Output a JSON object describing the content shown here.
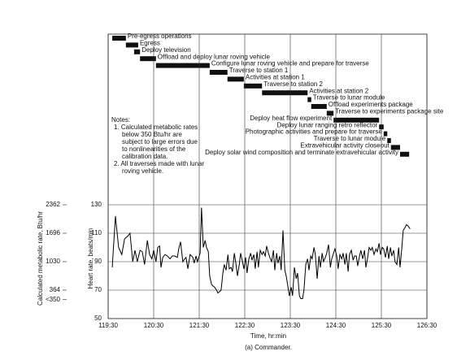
{
  "chart_data": [
    {
      "type": "gantt",
      "xlim": [
        119.5,
        126.5
      ],
      "tasks": [
        {
          "name": "Pre-egress operations",
          "start": 119.59,
          "end": 119.89
        },
        {
          "name": "Egress",
          "start": 119.89,
          "end": 120.16
        },
        {
          "name": "Deploy television",
          "start": 120.07,
          "end": 120.2
        },
        {
          "name": "Offload and deploy lunar roving vehicle",
          "start": 120.2,
          "end": 120.55
        },
        {
          "name": "Configure lunar roving vehicle and prepare for traverse",
          "start": 120.55,
          "end": 121.73
        },
        {
          "name": "Traverse to station 1",
          "start": 121.73,
          "end": 122.12
        },
        {
          "name": "Activities at station 1",
          "start": 122.12,
          "end": 122.48
        },
        {
          "name": "Traverse to station 2",
          "start": 122.48,
          "end": 122.88
        },
        {
          "name": "Activities at station 2",
          "start": 122.88,
          "end": 123.88
        },
        {
          "name": "Traverse to lunar module",
          "start": 123.88,
          "end": 123.96
        },
        {
          "name": "Offload experiments package",
          "start": 123.96,
          "end": 124.3
        },
        {
          "name": "Traverse to experiments package site",
          "start": 124.3,
          "end": 124.45
        },
        {
          "name": "Deploy heat flow experiment",
          "start": 124.45,
          "end": 125.45
        },
        {
          "name": "Deploy lunar ranging retro reflector",
          "start": 125.45,
          "end": 125.55
        },
        {
          "name": "Photographic activities and prepare for traverse",
          "start": 125.55,
          "end": 125.63
        },
        {
          "name": "Traverse to lunar module",
          "start": 125.63,
          "end": 125.71
        },
        {
          "name": "Extravehicular activity closeout",
          "start": 125.71,
          "end": 125.91
        },
        {
          "name": "Deploy solar wind composition and terminate extravehicular activity",
          "start": 125.91,
          "end": 126.11
        }
      ],
      "notes": [
        "Notes:",
        "1. Calculated metabolic rates",
        "below 350 Btu/hr are",
        "subject to large errors due",
        "to nonlinearities of the",
        "calibration data.",
        "2. All traverses made with lunar",
        "roving vehicle."
      ]
    },
    {
      "type": "line",
      "xlabel": "Time, hr:min",
      "ylabel": "Heart rate, beats/min",
      "y2label": "Calculated metabolic rate, Btu/hr",
      "caption": "(a) Commander.",
      "color": "#000000",
      "grid": true,
      "xlim": [
        119.5,
        126.5
      ],
      "xticks": [
        {
          "value": 119.5,
          "label": "119:30"
        },
        {
          "value": 120.5,
          "label": "120:30"
        },
        {
          "value": 121.5,
          "label": "121:30"
        },
        {
          "value": 122.5,
          "label": "122:30"
        },
        {
          "value": 123.5,
          "label": "123:30"
        },
        {
          "value": 124.5,
          "label": "124:30"
        },
        {
          "value": 125.5,
          "label": "125:30"
        },
        {
          "value": 126.5,
          "label": "126:30"
        }
      ],
      "ylim": [
        50,
        130
      ],
      "yticks": [
        50,
        70,
        90,
        110,
        130
      ],
      "y2lim": [
        -302,
        2362
      ],
      "y2ticks": [
        2362,
        1696,
        1030,
        364,
        {
          "value": 350,
          "label": "<350"
        }
      ],
      "x": [
        119.59,
        119.66,
        119.73,
        119.8,
        119.86,
        119.93,
        119.98,
        120.04,
        120.09,
        120.14,
        120.2,
        120.25,
        120.3,
        120.36,
        120.41,
        120.46,
        120.5,
        120.55,
        120.59,
        120.63,
        120.66,
        120.7,
        120.75,
        120.8,
        120.86,
        120.91,
        120.96,
        121.02,
        121.05,
        121.09,
        121.14,
        121.18,
        121.21,
        121.25,
        121.3,
        121.36,
        121.39,
        121.43,
        121.46,
        121.52,
        121.55,
        121.59,
        121.63,
        121.66,
        121.7,
        121.73,
        121.77,
        121.8,
        121.84,
        121.88,
        121.91,
        121.95,
        121.98,
        122.02,
        122.05,
        122.09,
        122.13,
        122.16,
        122.2,
        122.23,
        122.27,
        122.3,
        122.34,
        122.38,
        122.41,
        122.45,
        122.48,
        122.52,
        122.55,
        122.59,
        122.63,
        122.66,
        122.7,
        122.73,
        122.77,
        122.8,
        122.84,
        122.88,
        122.91,
        122.95,
        122.98,
        123.02,
        123.05,
        123.09,
        123.13,
        123.16,
        123.2,
        123.23,
        123.27,
        123.3,
        123.34,
        123.38,
        123.41,
        123.45,
        123.48,
        123.52,
        123.55,
        123.59,
        123.63,
        123.66,
        123.7,
        123.73,
        123.77,
        123.8,
        123.84,
        123.88,
        123.91,
        123.95,
        123.98,
        124.02,
        124.05,
        124.09,
        124.13,
        124.16,
        124.2,
        124.23,
        124.27,
        124.3,
        124.34,
        124.38,
        124.41,
        124.45,
        124.48,
        124.52,
        124.55,
        124.59,
        124.63,
        124.66,
        124.7,
        124.73,
        124.77,
        124.8,
        124.84,
        124.88,
        124.91,
        124.95,
        124.98,
        125.02,
        125.05,
        125.09,
        125.13,
        125.16,
        125.2,
        125.23,
        125.27,
        125.3,
        125.34,
        125.38,
        125.41,
        125.45,
        125.48,
        125.52,
        125.55,
        125.59,
        125.63,
        125.66,
        125.7,
        125.73,
        125.77,
        125.8,
        125.84,
        125.88,
        125.91,
        125.95,
        125.98,
        126.02,
        126.05,
        126.09,
        126.13
      ],
      "values": [
        86,
        122,
        100,
        95,
        106,
        108,
        110,
        90,
        98,
        90,
        98,
        97,
        88,
        105,
        95,
        92,
        98,
        90,
        100,
        101,
        86,
        93,
        95,
        94,
        92,
        94,
        94,
        93,
        99,
        104,
        90,
        92,
        93,
        85,
        95,
        93,
        89,
        94,
        90,
        96,
        128,
        100,
        105,
        100,
        97,
        80,
        74,
        73,
        72,
        70,
        68,
        69,
        70,
        82,
        88,
        84,
        95,
        85,
        86,
        83,
        96,
        90,
        80,
        88,
        96,
        90,
        85,
        93,
        82,
        92,
        96,
        91,
        95,
        85,
        97,
        86,
        98,
        95,
        97,
        94,
        101,
        96,
        93,
        90,
        98,
        84,
        96,
        89,
        94,
        84,
        112,
        84,
        80,
        72,
        66,
        72,
        66,
        86,
        78,
        82,
        66,
        64,
        64,
        70,
        88,
        92,
        84,
        94,
        92,
        100,
        95,
        78,
        94,
        86,
        96,
        90,
        93,
        96,
        102,
        86,
        92,
        96,
        99,
        94,
        85,
        95,
        92,
        96,
        88,
        96,
        83,
        95,
        98,
        91,
        94,
        94,
        87,
        94,
        98,
        92,
        98,
        86,
        93,
        100,
        98,
        100,
        95,
        99,
        97,
        103,
        95,
        100,
        99,
        93,
        101,
        92,
        100,
        94,
        98,
        90,
        88,
        100,
        86,
        100,
        112,
        114,
        116,
        115,
        113
      ]
    }
  ]
}
